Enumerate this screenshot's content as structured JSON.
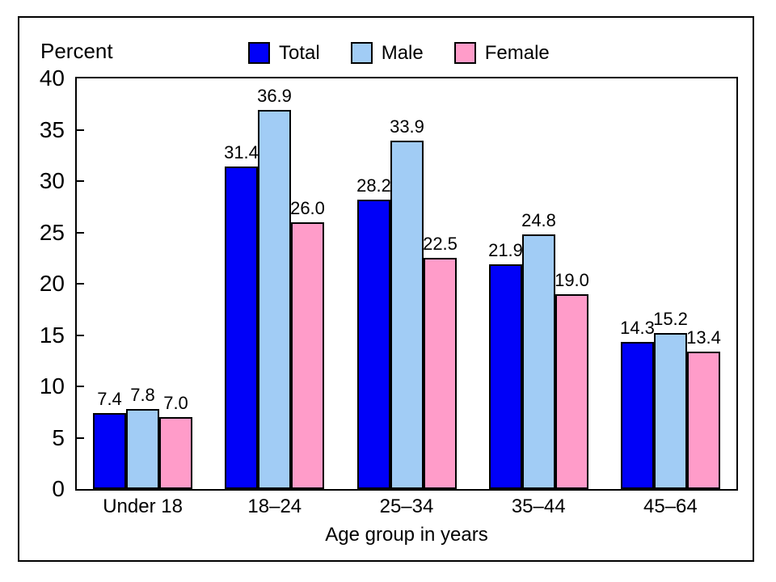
{
  "chart_data": {
    "type": "bar",
    "title": "",
    "ylabel": "Percent",
    "xlabel": "Age group in years",
    "ylim": [
      0,
      40
    ],
    "yticks": [
      0,
      5,
      10,
      15,
      20,
      25,
      30,
      35,
      40
    ],
    "grid": false,
    "legend_position": "top",
    "value_labels": true,
    "value_decimals": 1,
    "categories": [
      "Under 18",
      "18–24",
      "25–34",
      "35–44",
      "45–64"
    ],
    "series": [
      {
        "name": "Total",
        "color": "#0000F8",
        "values": [
          7.4,
          31.4,
          28.2,
          21.9,
          14.3
        ]
      },
      {
        "name": "Male",
        "color": "#A1CCF5",
        "values": [
          7.8,
          36.9,
          33.9,
          24.8,
          15.2
        ]
      },
      {
        "name": "Female",
        "color": "#FF9CC9",
        "values": [
          7.0,
          26.0,
          22.5,
          19.0,
          13.4
        ]
      }
    ]
  },
  "colors": {
    "axis": "#000000",
    "frame": "#000000",
    "background": "#FFFFFF",
    "text": "#000000"
  }
}
